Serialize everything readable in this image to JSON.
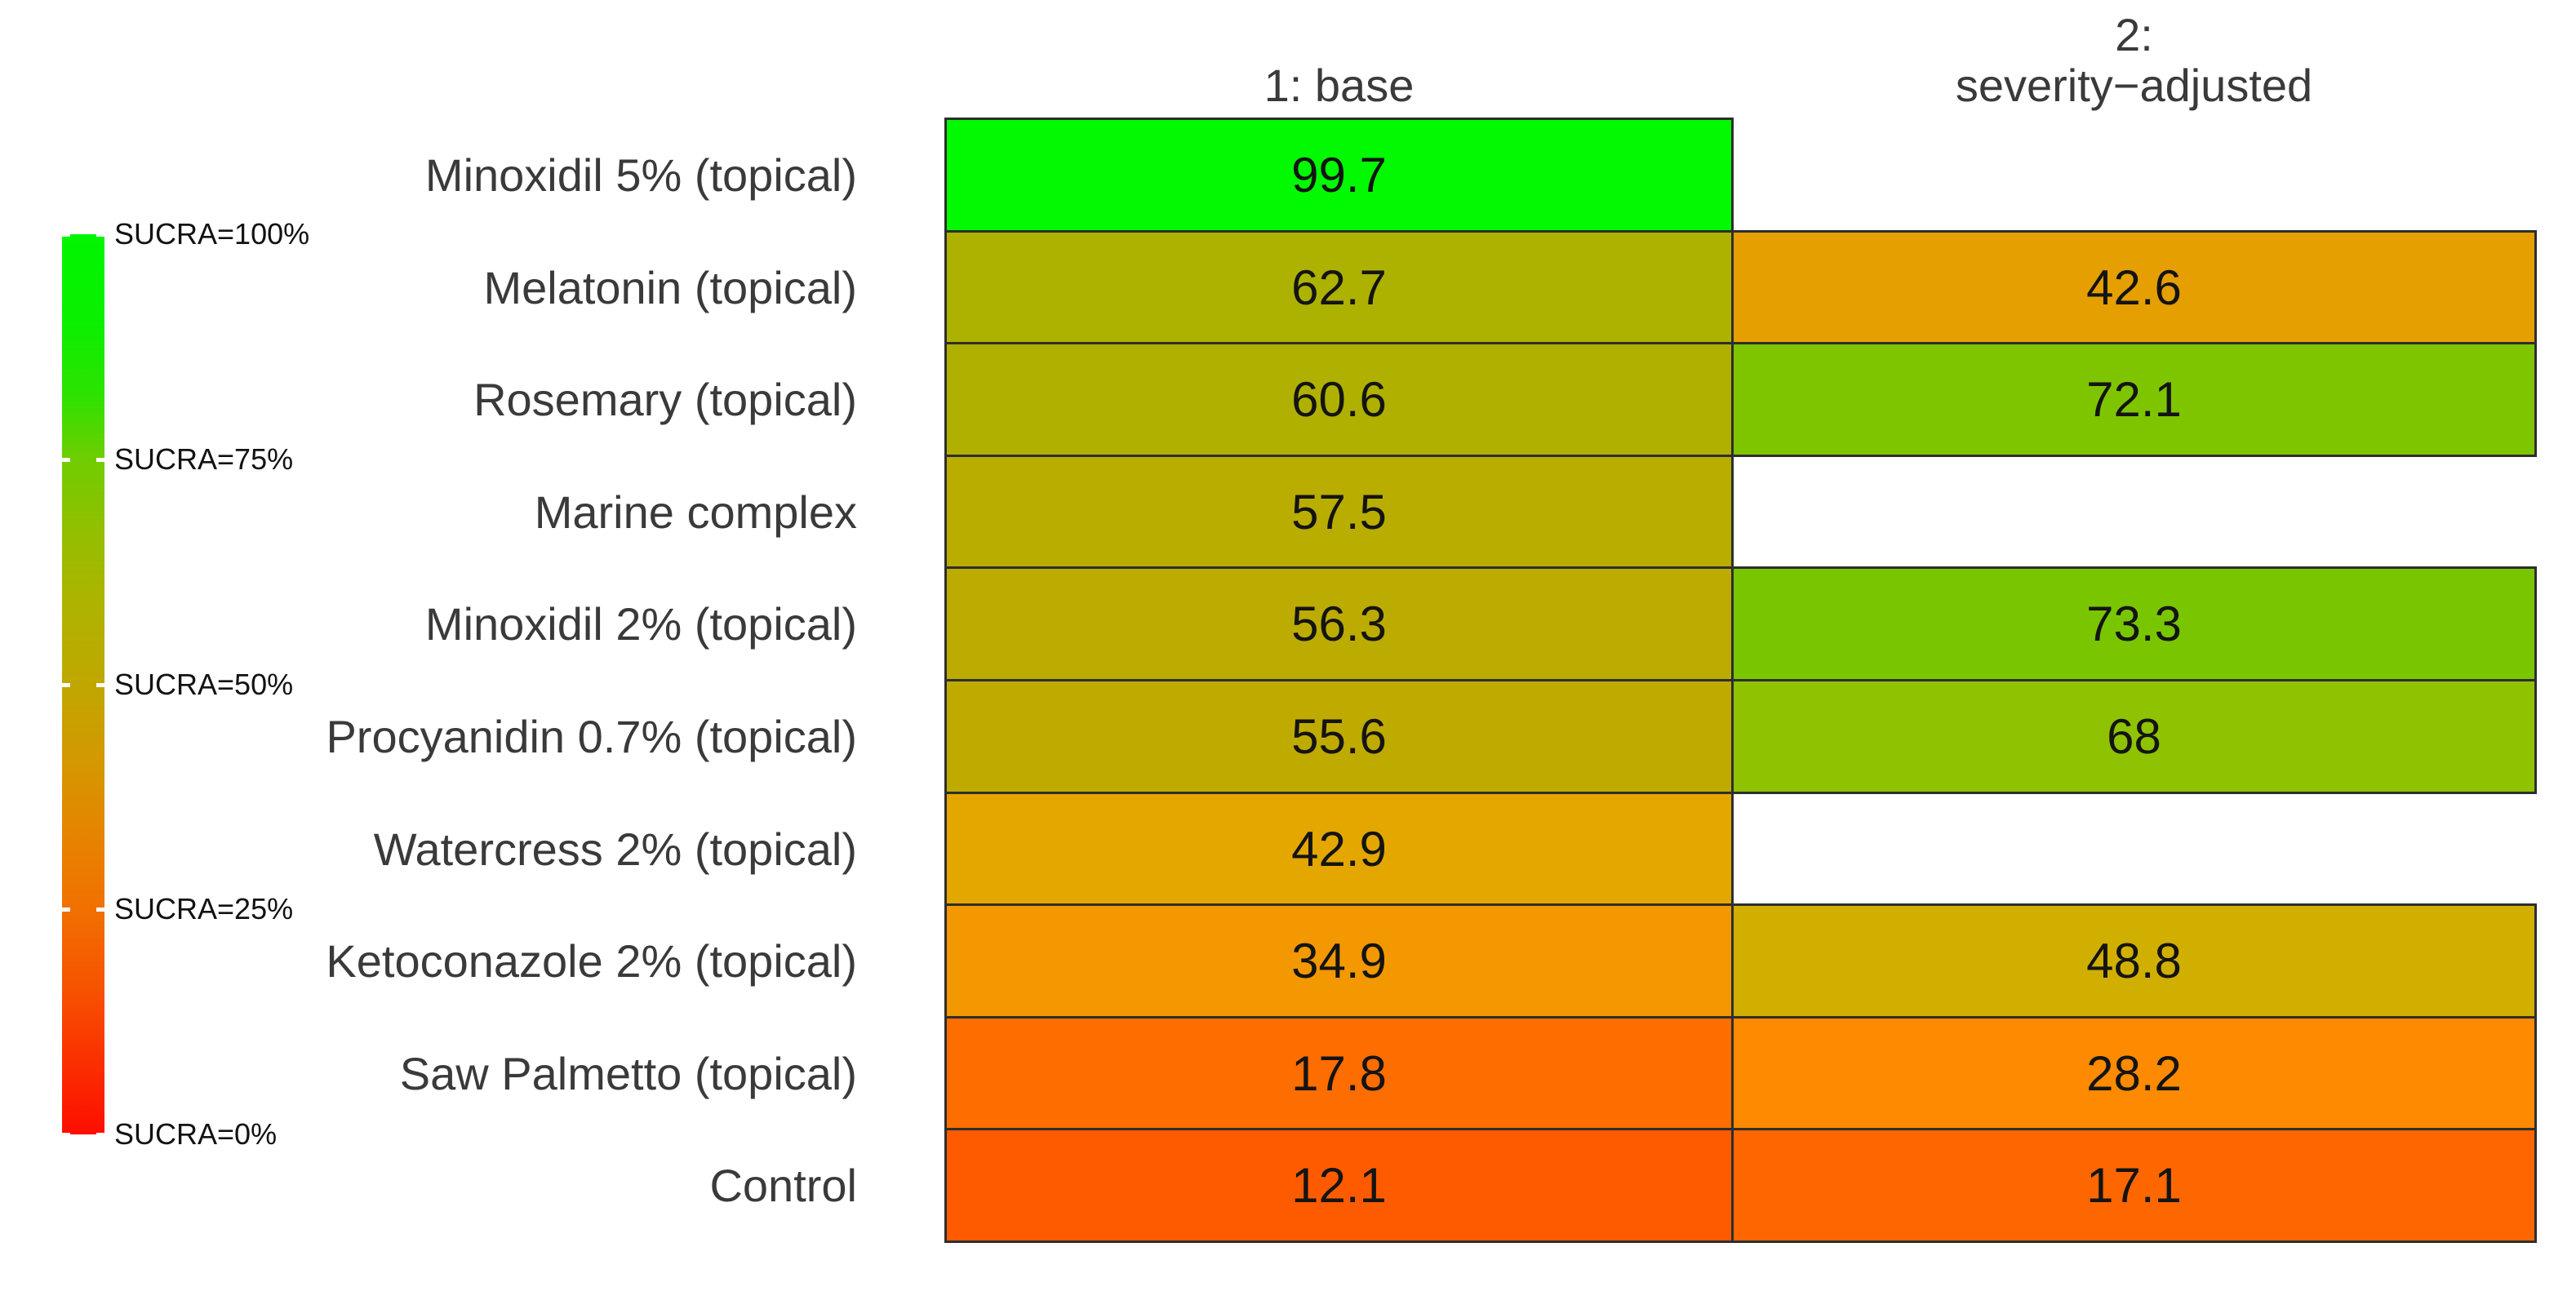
{
  "page": {
    "background": "#ffffff"
  },
  "legend": {
    "title_labels": [
      "SUCRA=100%",
      "SUCRA=75%",
      "SUCRA=50%",
      "SUCRA=25%",
      "SUCRA=0%"
    ],
    "tick_pcts": [
      100,
      75,
      50,
      25,
      0
    ],
    "gradient_stops": [
      "#00f600 0%",
      "#0bef00 10%",
      "#2ee200 18%",
      "#6fcd00 25%",
      "#93bf00 33%",
      "#aeb300 41%",
      "#c0a700 50%",
      "#d59700 59%",
      "#e68300 67%",
      "#f17000 75%",
      "#f75200 84%",
      "#fb2b00 93%",
      "#fc0e00 100%"
    ]
  },
  "headers": {
    "col1": "1: base",
    "col2_line1": "2:",
    "col2_line2": "severity−adjusted"
  },
  "rows": [
    {
      "label": "Minoxidil 5% (topical)",
      "base": {
        "value": "99.7",
        "color": "#01f901"
      },
      "adjusted": null
    },
    {
      "label": "Melatonin (topical)",
      "base": {
        "value": "62.7",
        "color": "#adb200"
      },
      "adjusted": {
        "value": "42.6",
        "color": "#e59f00"
      }
    },
    {
      "label": "Rosemary (topical)",
      "base": {
        "value": "60.6",
        "color": "#b0b000"
      },
      "adjusted": {
        "value": "72.1",
        "color": "#7ec500"
      }
    },
    {
      "label": "Marine complex",
      "base": {
        "value": "57.5",
        "color": "#b9ad00"
      },
      "adjusted": null
    },
    {
      "label": "Minoxidil 2% (topical)",
      "base": {
        "value": "56.3",
        "color": "#bcab00"
      },
      "adjusted": {
        "value": "73.3",
        "color": "#79c600"
      }
    },
    {
      "label": "Procyanidin 0.7% (topical)",
      "base": {
        "value": "55.6",
        "color": "#bfaa00"
      },
      "adjusted": {
        "value": "68",
        "color": "#8fc200"
      }
    },
    {
      "label": "Watercress 2% (topical)",
      "base": {
        "value": "42.9",
        "color": "#e3a700"
      },
      "adjusted": null
    },
    {
      "label": "Ketoconazole 2% (topical)",
      "base": {
        "value": "34.9",
        "color": "#f39800"
      },
      "adjusted": {
        "value": "48.8",
        "color": "#d1af00"
      }
    },
    {
      "label": "Saw Palmetto (topical)",
      "base": {
        "value": "17.8",
        "color": "#fd6d00"
      },
      "adjusted": {
        "value": "28.2",
        "color": "#fd8a00"
      }
    },
    {
      "label": "Control",
      "base": {
        "value": "12.1",
        "color": "#fe5b00"
      },
      "adjusted": {
        "value": "17.1",
        "color": "#fe6700"
      }
    }
  ],
  "chart_data": {
    "type": "heatmap",
    "title": "",
    "categories": [
      "Minoxidil 5% (topical)",
      "Melatonin (topical)",
      "Rosemary (topical)",
      "Marine complex",
      "Minoxidil 2% (topical)",
      "Procyanidin 0.7% (topical)",
      "Watercress 2% (topical)",
      "Ketoconazole 2% (topical)",
      "Saw Palmetto (topical)",
      "Control"
    ],
    "series": [
      {
        "name": "1: base",
        "values": [
          99.7,
          62.7,
          60.6,
          57.5,
          56.3,
          55.6,
          42.9,
          34.9,
          17.8,
          12.1
        ]
      },
      {
        "name": "2: severity−adjusted",
        "values": [
          null,
          42.6,
          72.1,
          null,
          73.3,
          68,
          null,
          48.8,
          28.2,
          17.1
        ]
      }
    ],
    "value_unit": "SUCRA %",
    "color_scale": {
      "min": {
        "value": 0,
        "color": "#fc0e00"
      },
      "mid": {
        "value": 50,
        "color": "#c0a700"
      },
      "max": {
        "value": 100,
        "color": "#01f901"
      }
    },
    "legend_position": "left",
    "legend_tick_labels": [
      "SUCRA=100%",
      "SUCRA=75%",
      "SUCRA=50%",
      "SUCRA=25%",
      "SUCRA=0%"
    ],
    "grid": false
  }
}
